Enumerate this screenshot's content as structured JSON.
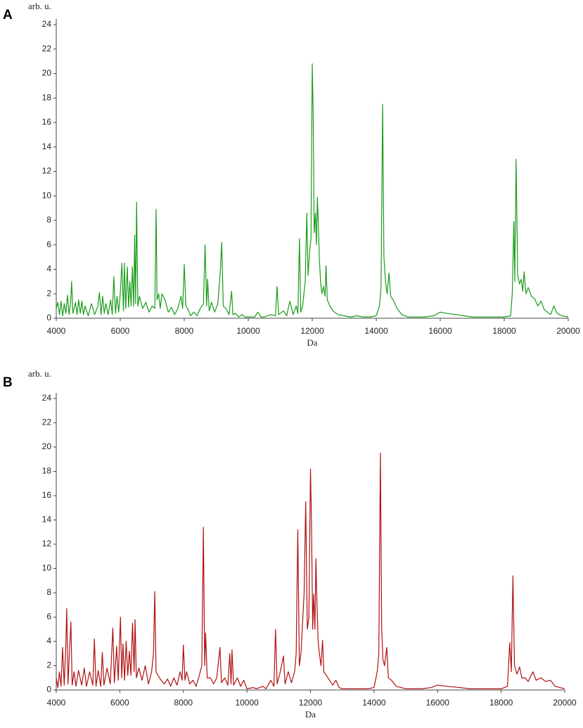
{
  "chart_data": [
    {
      "type": "line",
      "panel": "A",
      "ylabel": "arb. u.",
      "xlabel": "Da",
      "color": "#1a9c1a",
      "xlim": [
        4000,
        20000
      ],
      "xticks": [
        4000,
        6000,
        8000,
        10000,
        12000,
        14000,
        16000,
        18000,
        20000
      ],
      "ylim": [
        0,
        24
      ],
      "yticks": [
        0,
        2,
        4,
        6,
        8,
        10,
        12,
        14,
        16,
        18,
        20,
        22,
        24
      ],
      "x": [
        4000,
        4050,
        4100,
        4150,
        4200,
        4250,
        4300,
        4350,
        4400,
        4450,
        4480,
        4520,
        4600,
        4650,
        4700,
        4750,
        4800,
        4850,
        4900,
        5000,
        5100,
        5200,
        5300,
        5350,
        5400,
        5450,
        5500,
        5550,
        5620,
        5700,
        5750,
        5800,
        5850,
        5900,
        5950,
        6000,
        6050,
        6100,
        6130,
        6170,
        6220,
        6260,
        6300,
        6340,
        6380,
        6420,
        6450,
        6480,
        6510,
        6550,
        6600,
        6700,
        6800,
        6900,
        7000,
        7080,
        7120,
        7150,
        7200,
        7250,
        7300,
        7400,
        7500,
        7600,
        7700,
        7800,
        7900,
        7950,
        8000,
        8050,
        8100,
        8200,
        8300,
        8400,
        8500,
        8600,
        8650,
        8700,
        8730,
        8780,
        8850,
        8950,
        9050,
        9130,
        9170,
        9220,
        9300,
        9400,
        9480,
        9520,
        9600,
        9700,
        9800,
        9900,
        10000,
        10200,
        10300,
        10400,
        10500,
        10700,
        10850,
        10900,
        10950,
        11100,
        11200,
        11300,
        11400,
        11500,
        11550,
        11600,
        11640,
        11700,
        11780,
        11830,
        11870,
        11920,
        11960,
        12000,
        12030,
        12060,
        12100,
        12130,
        12160,
        12190,
        12220,
        12260,
        12300,
        12350,
        12400,
        12430,
        12470,
        12550,
        12650,
        12800,
        13000,
        13200,
        13400,
        13600,
        13800,
        14000,
        14100,
        14150,
        14200,
        14240,
        14290,
        14340,
        14400,
        14450,
        14550,
        14650,
        14800,
        15000,
        15500,
        15800,
        16000,
        16200,
        16500,
        17000,
        17500,
        18000,
        18200,
        18250,
        18300,
        18330,
        18370,
        18420,
        18480,
        18530,
        18580,
        18620,
        18680,
        18750,
        18850,
        18950,
        19050,
        19150,
        19250,
        19350,
        19450,
        19550,
        19650,
        19800,
        20000
      ],
      "values": [
        0.8,
        1.3,
        0.3,
        1.4,
        0.2,
        1.2,
        0.4,
        1.9,
        0.3,
        1.3,
        3.0,
        0.4,
        1.3,
        0.3,
        1.5,
        0.4,
        1.4,
        0.3,
        1.0,
        0.2,
        1.2,
        0.3,
        1.0,
        2.1,
        0.3,
        1.8,
        0.4,
        1.2,
        0.3,
        1.5,
        0.3,
        3.4,
        0.4,
        1.8,
        0.5,
        2.0,
        4.5,
        0.6,
        4.5,
        0.8,
        4.2,
        0.9,
        3.0,
        1.0,
        4.2,
        1.0,
        6.8,
        1.2,
        9.5,
        1.0,
        1.8,
        0.8,
        1.3,
        0.5,
        1.0,
        0.8,
        8.9,
        1.5,
        2.0,
        0.8,
        2.0,
        1.5,
        0.5,
        0.9,
        0.3,
        0.8,
        1.8,
        0.8,
        4.4,
        1.0,
        0.8,
        0.2,
        0.5,
        0.2,
        0.8,
        1.2,
        6.0,
        1.0,
        3.2,
        0.6,
        1.3,
        0.5,
        1.2,
        4.0,
        6.2,
        1.0,
        0.8,
        0.3,
        2.2,
        0.3,
        0.4,
        0.1,
        0.3,
        0.1,
        0.1,
        0.1,
        0.5,
        0.1,
        0.1,
        0.3,
        0.2,
        2.6,
        0.3,
        0.6,
        0.2,
        1.4,
        0.3,
        1.0,
        0.4,
        6.5,
        0.5,
        1.0,
        3.0,
        8.6,
        3.5,
        5.5,
        6.5,
        20.8,
        16.8,
        7.0,
        8.6,
        6.0,
        9.9,
        7.8,
        5.0,
        3.0,
        2.0,
        2.6,
        1.8,
        4.3,
        1.5,
        1.0,
        0.6,
        0.3,
        0.2,
        0.1,
        0.2,
        0.1,
        0.1,
        0.2,
        1.0,
        2.5,
        17.5,
        5.0,
        3.0,
        2.0,
        3.7,
        1.8,
        1.4,
        0.8,
        0.3,
        0.1,
        0.1,
        0.2,
        0.5,
        0.4,
        0.3,
        0.1,
        0.1,
        0.1,
        0.2,
        2.0,
        7.9,
        3.0,
        13.0,
        3.5,
        2.8,
        3.2,
        2.2,
        3.8,
        2.0,
        2.5,
        1.8,
        1.6,
        1.0,
        1.4,
        0.7,
        0.5,
        0.3,
        1.0,
        0.4,
        0.2,
        0.1
      ]
    },
    {
      "type": "line",
      "panel": "B",
      "ylabel": "arb. u.",
      "xlabel": "Da",
      "color": "#b01010",
      "xlim": [
        4000,
        20000
      ],
      "xticks": [
        4000,
        6000,
        8000,
        10000,
        12000,
        14000,
        16000,
        18000,
        20000
      ],
      "ylim": [
        0,
        24
      ],
      "yticks": [
        0,
        2,
        4,
        6,
        8,
        10,
        12,
        14,
        16,
        18,
        20,
        22,
        24
      ],
      "x": [
        4000,
        4050,
        4100,
        4150,
        4200,
        4250,
        4300,
        4330,
        4370,
        4420,
        4460,
        4500,
        4560,
        4620,
        4700,
        4800,
        4880,
        4950,
        5050,
        5150,
        5200,
        5250,
        5320,
        5400,
        5450,
        5500,
        5600,
        5700,
        5780,
        5830,
        5900,
        5950,
        6020,
        6060,
        6100,
        6150,
        6200,
        6250,
        6300,
        6350,
        6400,
        6450,
        6480,
        6520,
        6600,
        6700,
        6800,
        6900,
        7000,
        7060,
        7100,
        7140,
        7200,
        7300,
        7400,
        7500,
        7600,
        7700,
        7800,
        7900,
        7960,
        8000,
        8050,
        8100,
        8200,
        8300,
        8400,
        8500,
        8580,
        8630,
        8670,
        8700,
        8750,
        8850,
        8950,
        9050,
        9150,
        9200,
        9300,
        9400,
        9460,
        9500,
        9530,
        9580,
        9700,
        9800,
        9900,
        10000,
        10200,
        10300,
        10500,
        10600,
        10750,
        10850,
        10900,
        10950,
        11050,
        11150,
        11200,
        11300,
        11400,
        11500,
        11550,
        11600,
        11650,
        11700,
        11800,
        11850,
        11900,
        11950,
        12000,
        12030,
        12070,
        12100,
        12140,
        12170,
        12200,
        12240,
        12280,
        12330,
        12380,
        12420,
        12500,
        12600,
        12700,
        12800,
        12900,
        13000,
        13500,
        13800,
        14000,
        14100,
        14150,
        14200,
        14240,
        14280,
        14330,
        14400,
        14450,
        14550,
        14700,
        15000,
        15500,
        15800,
        16000,
        16300,
        16700,
        17000,
        17500,
        18000,
        18200,
        18270,
        18320,
        18370,
        18420,
        18500,
        18580,
        18650,
        18750,
        18850,
        19000,
        19100,
        19250,
        19400,
        19550,
        19700,
        19850,
        20000
      ],
      "values": [
        1.0,
        0.2,
        1.5,
        0.3,
        3.5,
        0.4,
        3.6,
        6.7,
        0.5,
        3.4,
        5.6,
        0.4,
        1.5,
        0.3,
        1.6,
        0.4,
        1.8,
        0.3,
        1.5,
        0.4,
        4.2,
        0.3,
        1.6,
        0.3,
        3.1,
        0.4,
        1.8,
        0.5,
        5.1,
        0.6,
        3.6,
        0.8,
        6.0,
        1.0,
        3.8,
        0.8,
        4.0,
        1.2,
        3.2,
        1.2,
        5.5,
        1.5,
        5.8,
        1.0,
        1.8,
        0.8,
        2.0,
        0.5,
        1.5,
        3.0,
        8.1,
        1.5,
        1.2,
        0.8,
        0.5,
        0.9,
        0.3,
        1.0,
        0.4,
        1.5,
        0.8,
        3.7,
        0.8,
        1.5,
        0.5,
        0.8,
        0.3,
        1.2,
        2.0,
        13.4,
        2.0,
        4.7,
        1.0,
        1.0,
        0.5,
        1.0,
        3.5,
        0.6,
        1.0,
        0.4,
        3.0,
        0.5,
        3.3,
        0.4,
        1.0,
        0.3,
        0.8,
        0.1,
        0.2,
        0.1,
        0.3,
        0.1,
        0.8,
        0.3,
        5.0,
        0.5,
        1.5,
        2.8,
        0.5,
        1.5,
        0.6,
        1.5,
        3.0,
        13.2,
        2.0,
        3.0,
        8.0,
        15.5,
        5.0,
        6.0,
        18.2,
        14.0,
        5.0,
        7.9,
        5.0,
        10.8,
        7.5,
        4.0,
        3.0,
        2.0,
        4.1,
        1.5,
        1.2,
        0.8,
        0.4,
        0.8,
        0.2,
        0.1,
        0.1,
        0.1,
        0.2,
        1.5,
        3.0,
        19.5,
        5.0,
        2.5,
        2.0,
        3.5,
        1.0,
        0.8,
        0.3,
        0.1,
        0.1,
        0.2,
        0.4,
        0.3,
        0.2,
        0.1,
        0.1,
        0.1,
        0.3,
        3.9,
        1.5,
        9.4,
        2.0,
        1.3,
        1.9,
        1.0,
        1.0,
        0.7,
        1.5,
        0.8,
        1.0,
        0.7,
        0.8,
        0.3,
        0.2,
        0.1
      ]
    }
  ]
}
